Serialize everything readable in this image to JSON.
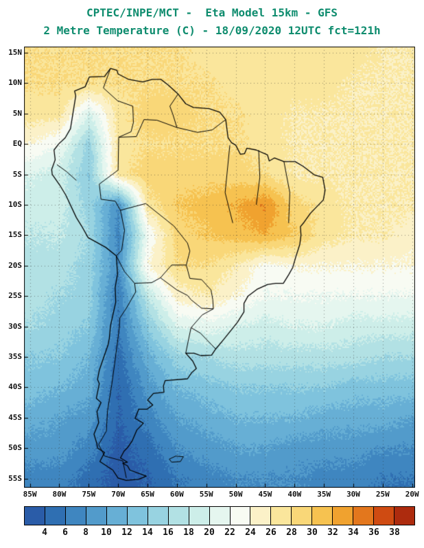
{
  "header": {
    "line1": "CPTEC/INPE/MCT -  Eta Model 15km - GFS",
    "line2": "2 Metre Temperature (C) - 18/09/2020 12UTC fct=121h",
    "title_color": "#0e8c6e"
  },
  "chart_data": {
    "type": "heatmap",
    "title": "CPTEC/INPE/MCT - Eta Model 15km - GFS",
    "subtitle": "2 Metre Temperature (C) - 18/09/2020 12UTC fct=121h",
    "variable": "2 Metre Temperature",
    "units": "C",
    "model": "Eta Model 15km",
    "boundary_condition": "GFS",
    "run_datetime": "18/09/2020 12UTC",
    "forecast_hour": "fct=121h",
    "region": "South America",
    "grid_on": true,
    "legend_position": "bottom",
    "lon_extent": [
      -86,
      -19.5
    ],
    "lat_extent": [
      16,
      -56.5
    ],
    "lon_ticks": [
      {
        "label": "85W",
        "value": -85
      },
      {
        "label": "80W",
        "value": -80
      },
      {
        "label": "75W",
        "value": -75
      },
      {
        "label": "70W",
        "value": -70
      },
      {
        "label": "65W",
        "value": -65
      },
      {
        "label": "60W",
        "value": -60
      },
      {
        "label": "55W",
        "value": -55
      },
      {
        "label": "50W",
        "value": -50
      },
      {
        "label": "45W",
        "value": -45
      },
      {
        "label": "40W",
        "value": -40
      },
      {
        "label": "35W",
        "value": -35
      },
      {
        "label": "30W",
        "value": -30
      },
      {
        "label": "25W",
        "value": -25
      },
      {
        "label": "20W",
        "value": -20
      }
    ],
    "lat_ticks": [
      {
        "label": "15N",
        "value": 15
      },
      {
        "label": "10N",
        "value": 10
      },
      {
        "label": "5N",
        "value": 5
      },
      {
        "label": "EQ",
        "value": 0
      },
      {
        "label": "5S",
        "value": -5
      },
      {
        "label": "10S",
        "value": -10
      },
      {
        "label": "15S",
        "value": -15
      },
      {
        "label": "20S",
        "value": -20
      },
      {
        "label": "25S",
        "value": -25
      },
      {
        "label": "30S",
        "value": -30
      },
      {
        "label": "35S",
        "value": -35
      },
      {
        "label": "40S",
        "value": -40
      },
      {
        "label": "45S",
        "value": -45
      },
      {
        "label": "50S",
        "value": -50
      },
      {
        "label": "55S",
        "value": -55
      }
    ],
    "colorbar": {
      "levels": [
        4,
        6,
        8,
        10,
        12,
        14,
        16,
        18,
        20,
        22,
        24,
        26,
        28,
        30,
        32,
        34,
        36,
        38
      ],
      "colors": [
        "#2a5ca8",
        "#2f6fb2",
        "#3f86c0",
        "#529bcb",
        "#67afd5",
        "#7fc3dd",
        "#98d3e1",
        "#b2e1e4",
        "#cdeee9",
        "#e5f6ef",
        "#f8fbf3",
        "#fbf1c8",
        "#fae69c",
        "#f9d778",
        "#f6c250",
        "#f0a22f",
        "#e3771d",
        "#cf4b12",
        "#ad2b0e"
      ],
      "label_color": "#111111"
    },
    "grid": {
      "lons": [
        -85,
        -80,
        -75,
        -70,
        -65,
        -60,
        -55,
        -50,
        -45,
        -40,
        -35,
        -30,
        -25,
        -20
      ],
      "lats": [
        15,
        10,
        5,
        0,
        -5,
        -10,
        -15,
        -20,
        -25,
        -30,
        -35,
        -40,
        -45,
        -50,
        -55
      ],
      "temps_c": [
        [
          28,
          28,
          28,
          28,
          28,
          28,
          27,
          27,
          27,
          27,
          27,
          27,
          26,
          26
        ],
        [
          28,
          28,
          28,
          28,
          28,
          28,
          28,
          27,
          27,
          27,
          27,
          26,
          26,
          26
        ],
        [
          27,
          27,
          20,
          27,
          29,
          29,
          28,
          28,
          27,
          26,
          26,
          26,
          26,
          26
        ],
        [
          24,
          22,
          15,
          27,
          28,
          28,
          28,
          28,
          27,
          26,
          26,
          26,
          26,
          26
        ],
        [
          20,
          19,
          14,
          27,
          29,
          29,
          29,
          29,
          28,
          26,
          26,
          26,
          26,
          26
        ],
        [
          19,
          19,
          15,
          8,
          27,
          30,
          31,
          32,
          34,
          29,
          27,
          26,
          26,
          26
        ],
        [
          18,
          18,
          16,
          7,
          22,
          29,
          30,
          31,
          32,
          30,
          27,
          26,
          26,
          25
        ],
        [
          17,
          17,
          15,
          8,
          24,
          28,
          28,
          26,
          23,
          24,
          24,
          24,
          24,
          24
        ],
        [
          17,
          16,
          15,
          6,
          18,
          25,
          26,
          24,
          22,
          22,
          22,
          22,
          22,
          22
        ],
        [
          16,
          15,
          14,
          6,
          14,
          20,
          21,
          20,
          19,
          20,
          20,
          19,
          19,
          19
        ],
        [
          14,
          14,
          12,
          5,
          11,
          15,
          16,
          17,
          17,
          17,
          17,
          17,
          16,
          16
        ],
        [
          13,
          12,
          11,
          4,
          9,
          12,
          13,
          14,
          14,
          14,
          14,
          13,
          13,
          13
        ],
        [
          11,
          10,
          9,
          4,
          7,
          10,
          11,
          12,
          12,
          12,
          11,
          11,
          11,
          10
        ],
        [
          9,
          9,
          7,
          3,
          5,
          8,
          9,
          10,
          10,
          9,
          9,
          9,
          8,
          8
        ],
        [
          7,
          7,
          5,
          3,
          4,
          6,
          7,
          8,
          8,
          8,
          7,
          7,
          6,
          6
        ]
      ]
    }
  }
}
